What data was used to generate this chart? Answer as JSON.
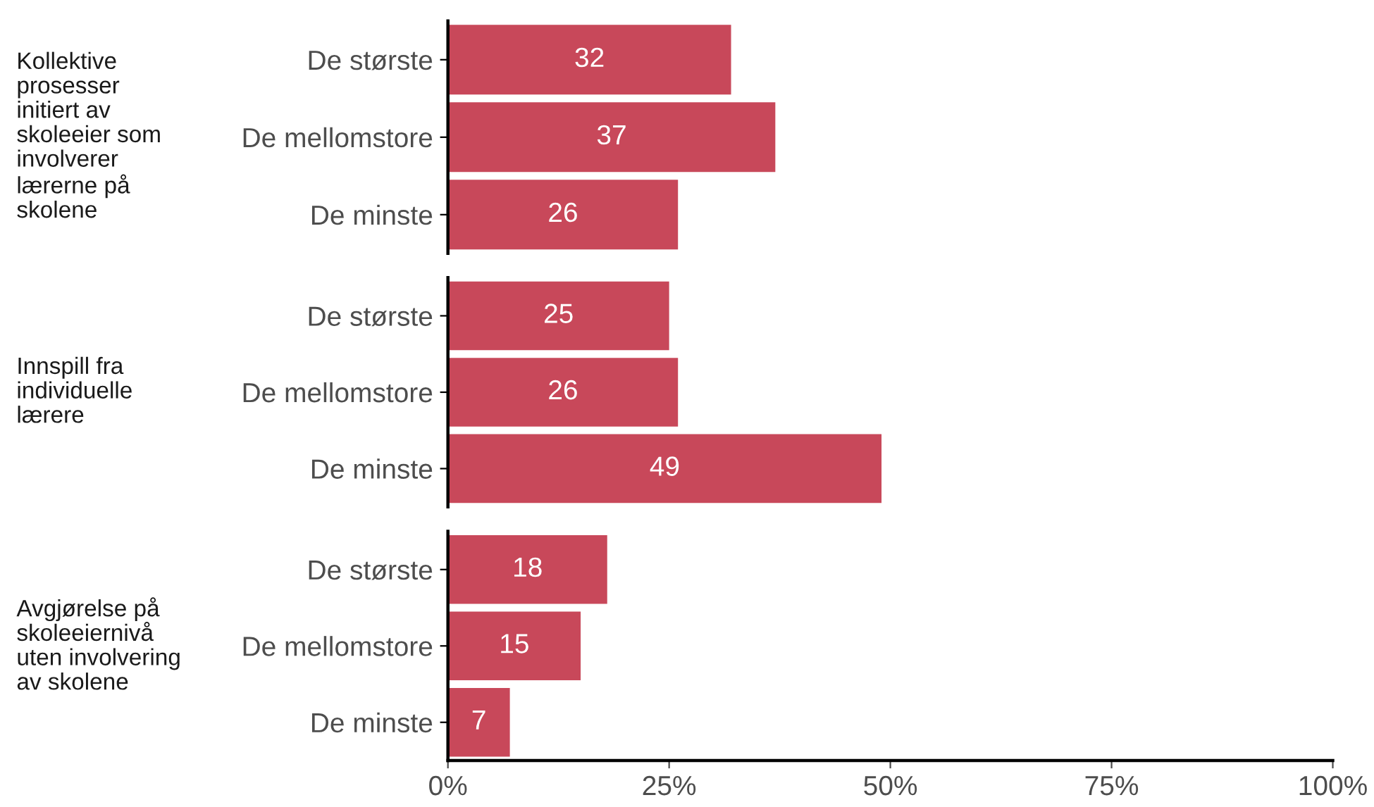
{
  "chart_data": [
    {
      "type": "bar",
      "orientation": "horizontal",
      "title": "Kollektive prosesser initiert av skoleeier som involverer lærerne på skolene",
      "categories": [
        "De største",
        "De mellomstore",
        "De minste"
      ],
      "values": [
        32,
        37,
        26
      ],
      "color": "#c8485a",
      "data_labels": true,
      "xlim": [
        0,
        100
      ],
      "tick_labels": "y",
      "grid": false,
      "legend": false
    },
    {
      "type": "bar",
      "orientation": "horizontal",
      "title": "Innspill fra individuelle lærere",
      "categories": [
        "De største",
        "De mellomstore",
        "De minste"
      ],
      "values": [
        25,
        26,
        49
      ],
      "color": "#c8485a",
      "data_labels": true,
      "xlim": [
        0,
        100
      ],
      "tick_labels": "y",
      "grid": false,
      "legend": false
    },
    {
      "type": "bar",
      "orientation": "horizontal",
      "title": "Avgjørelse på skoleeiernivå uten involvering av skolene",
      "categories": [
        "De største",
        "De mellomstore",
        "De minste"
      ],
      "values": [
        18,
        15,
        7
      ],
      "color": "#c8485a",
      "data_labels": true,
      "xlim": [
        0,
        100
      ],
      "xticks": [
        {
          "value": 0,
          "label": "0%"
        },
        {
          "value": 25,
          "label": "25%"
        },
        {
          "value": 50,
          "label": "50%"
        },
        {
          "value": 75,
          "label": "75%"
        },
        {
          "value": 100,
          "label": "100%"
        }
      ],
      "grid": false,
      "legend": false
    }
  ]
}
